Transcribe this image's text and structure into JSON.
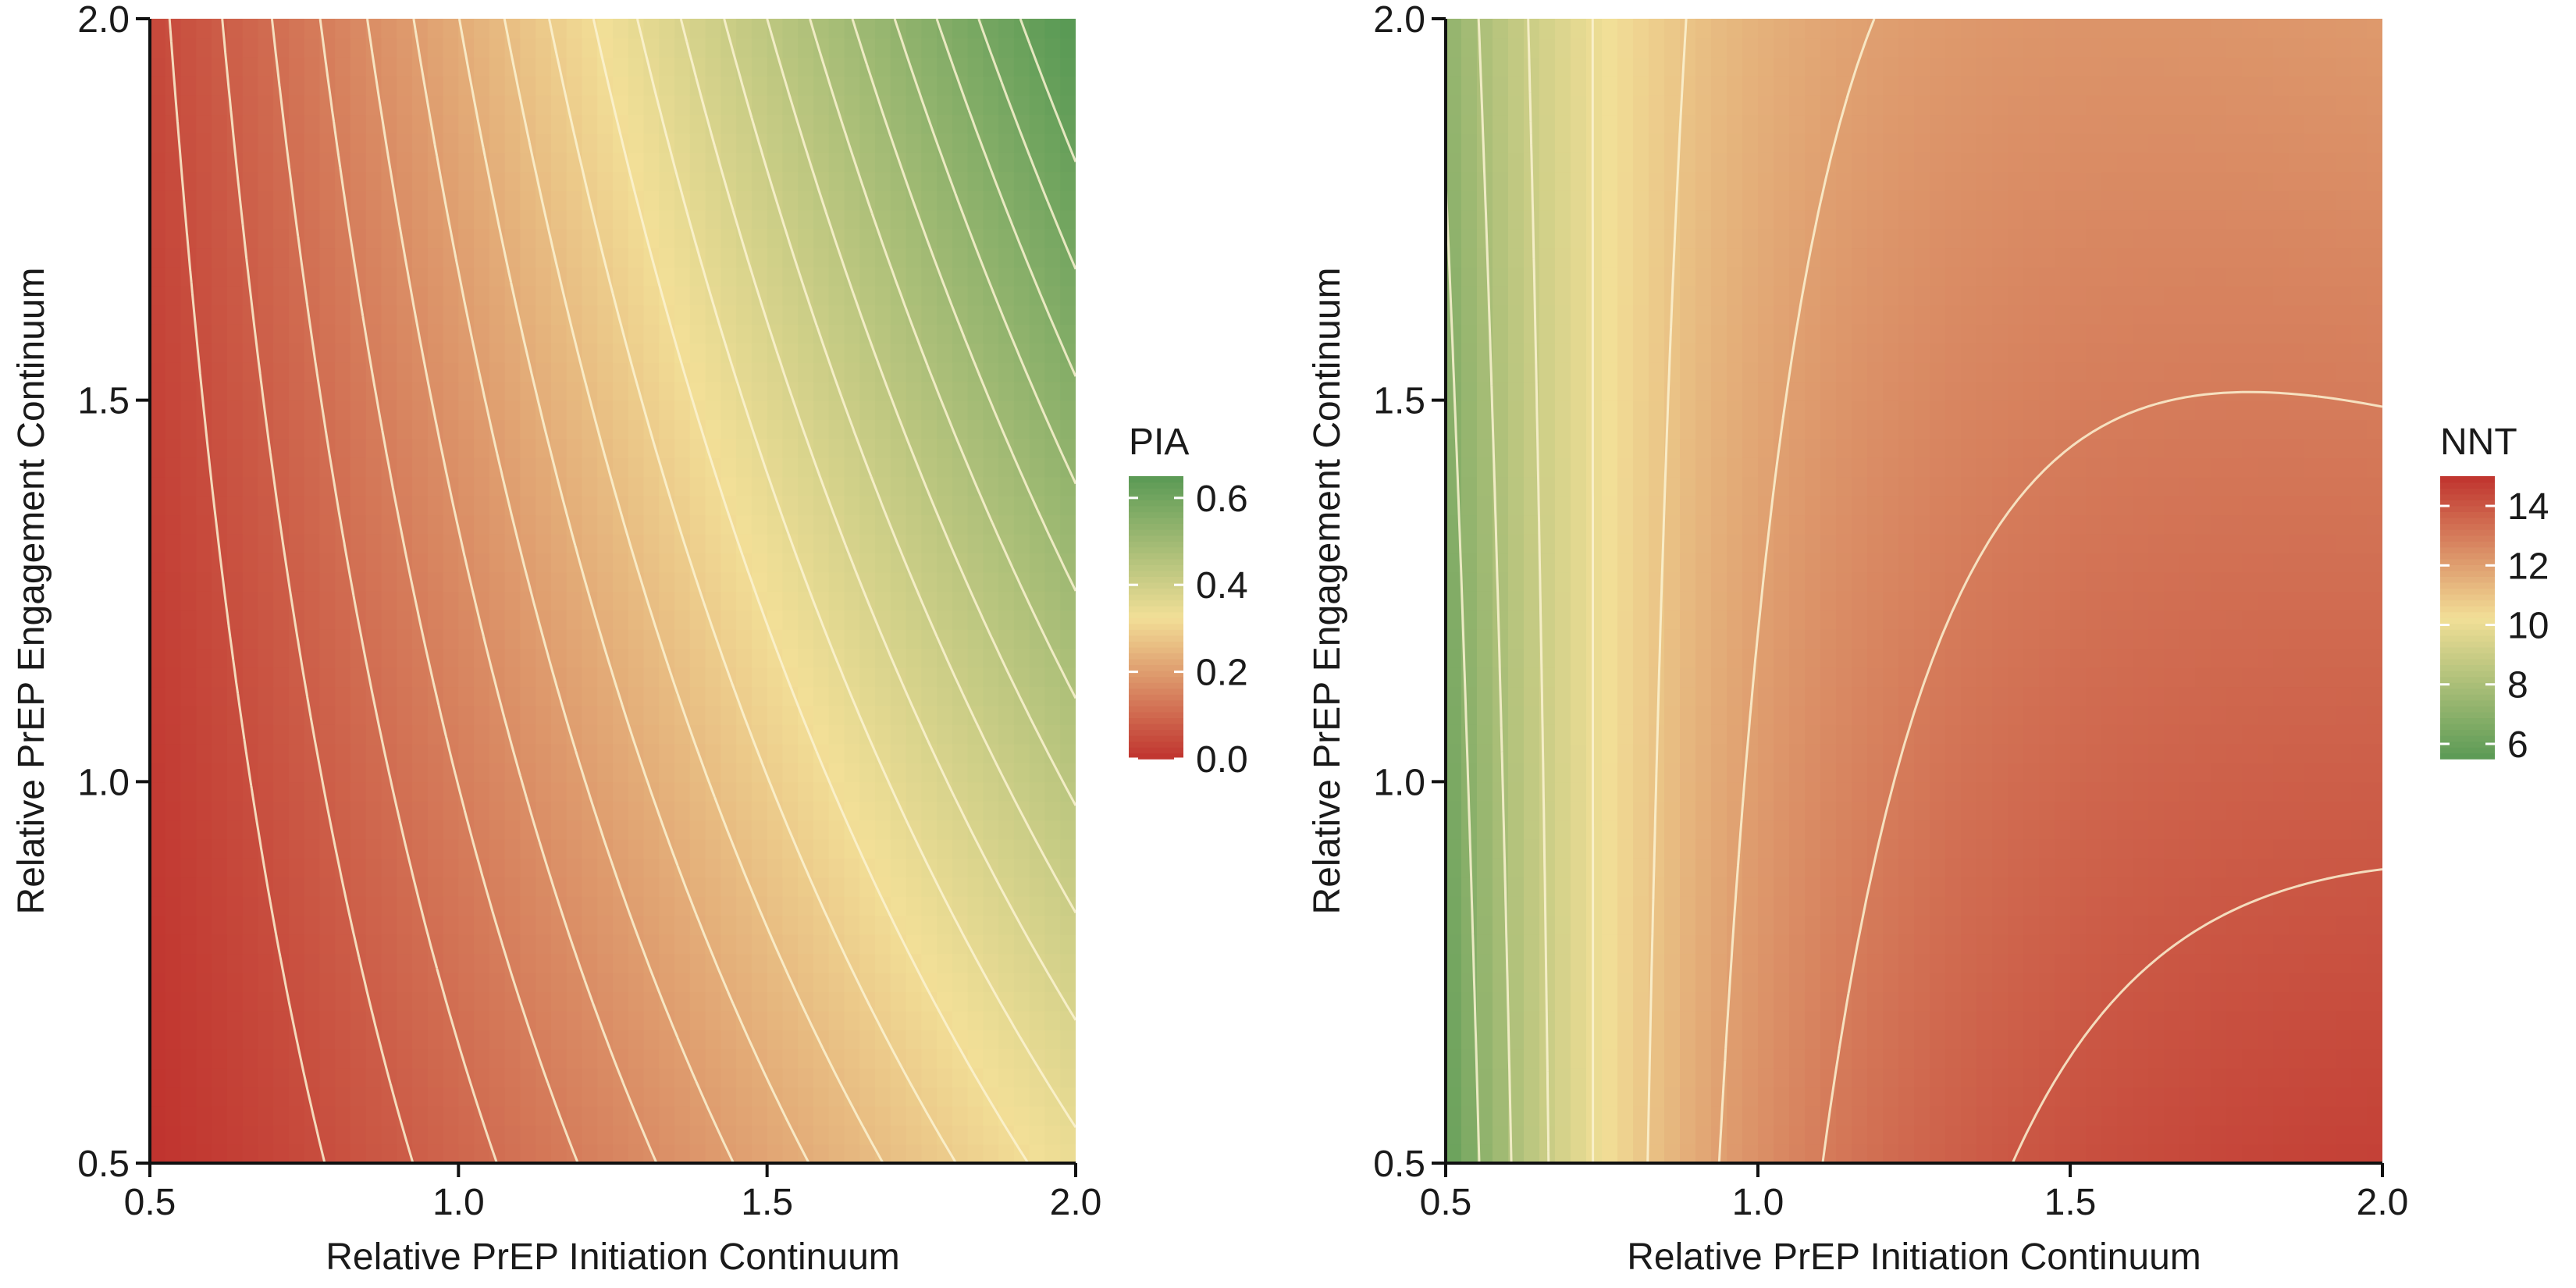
{
  "colors": {
    "low": "#c0332e",
    "mid": "#f2df97",
    "high": "#5a9a55",
    "contour": "#fbf3d2",
    "axis": "#111111"
  },
  "chart_data": [
    {
      "type": "heatmap",
      "id": "pia",
      "title": "",
      "xlabel": "Relative PrEP Initiation Continuum",
      "ylabel": "Relative PrEP Engagement Continuum",
      "xlim": [
        0.5,
        2.0
      ],
      "ylim": [
        0.5,
        2.0
      ],
      "x_ticks": [
        0.5,
        1.0,
        1.5,
        2.0
      ],
      "y_ticks": [
        0.5,
        1.0,
        1.5,
        2.0
      ],
      "x_tick_labels": [
        "0.5",
        "1.0",
        "1.5",
        "2.0"
      ],
      "y_tick_labels": [
        "0.5",
        "1.0",
        "1.5",
        "2.0"
      ],
      "legend": {
        "title": "PIA",
        "range": [
          0.0,
          0.65
        ],
        "ticks": [
          0.0,
          0.2,
          0.4,
          0.6
        ],
        "tick_labels": [
          "0.0",
          "0.2",
          "0.4",
          "0.6"
        ],
        "colormap": "red-yellow-green (high = green)"
      },
      "surface": {
        "description": "PIA increases with both initiation and engagement; approx. 0.0 at (0.5, 0.5) and 0.65 at (2.0, 2.0)",
        "corner_values": {
          "x0.5_y0.5": 0.0,
          "x2.0_y0.5": 0.34,
          "x0.5_y2.0": 0.04,
          "x2.0_y2.0": 0.65
        }
      },
      "contour_levels": [
        0.05,
        0.08,
        0.11,
        0.14,
        0.17,
        0.2,
        0.23,
        0.26,
        0.29,
        0.32,
        0.35,
        0.38,
        0.41,
        0.44,
        0.47,
        0.5,
        0.53,
        0.56,
        0.59,
        0.62
      ]
    },
    {
      "type": "heatmap",
      "id": "nnt",
      "title": "",
      "xlabel": "Relative PrEP Initiation Continuum",
      "ylabel": "Relative PrEP Engagement Continuum",
      "xlim": [
        0.5,
        2.0
      ],
      "ylim": [
        0.5,
        2.0
      ],
      "x_ticks": [
        0.5,
        1.0,
        1.5,
        2.0
      ],
      "y_ticks": [
        0.5,
        1.0,
        1.5,
        2.0
      ],
      "x_tick_labels": [
        "0.5",
        "1.0",
        "1.5",
        "2.0"
      ],
      "y_tick_labels": [
        "0.5",
        "1.0",
        "1.5",
        "2.0"
      ],
      "legend": {
        "title": "NNT",
        "range": [
          5.5,
          15.0
        ],
        "ticks": [
          6,
          8,
          10,
          12,
          14
        ],
        "tick_labels": [
          "6",
          "8",
          "10",
          "12",
          "14"
        ],
        "colormap": "green-yellow-red (high = red)"
      },
      "surface": {
        "description": "NNT lowest (~6) at low initiation, rising to ~15 at high initiation and low engagement",
        "corner_values": {
          "x0.5_y0.5": 5.8,
          "x2.0_y0.5": 14.8,
          "x0.5_y2.0": 7.2,
          "x2.0_y2.0": 12.6
        }
      },
      "contour_levels": [
        7,
        8,
        9,
        10,
        11,
        12,
        13,
        14
      ]
    }
  ]
}
